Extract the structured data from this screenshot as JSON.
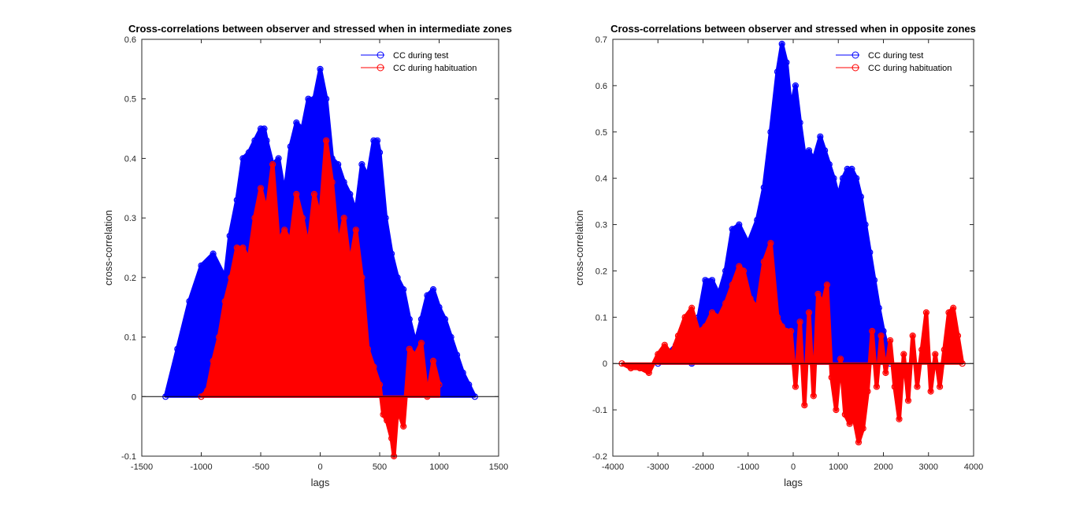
{
  "chart_data": [
    {
      "type": "line",
      "title": "Cross-correlations between observer and stressed when in intermediate zones",
      "xlabel": "lags",
      "ylabel": "cross-correlation",
      "xlim": [
        -1500,
        1500
      ],
      "ylim": [
        -0.1,
        0.6
      ],
      "xticks": [
        "-1500",
        "-1000",
        "-500",
        "0",
        "500",
        "1000",
        "1500"
      ],
      "yticks": [
        "-0.1",
        "0",
        "0.1",
        "0.2",
        "0.3",
        "0.4",
        "0.5",
        "0.6"
      ],
      "legend_position": "top-right",
      "series": [
        {
          "name": "CC during test",
          "color": "#0000ff",
          "x": [
            -1300,
            -1200,
            -1100,
            -1000,
            -900,
            -800,
            -760,
            -700,
            -650,
            -600,
            -550,
            -500,
            -470,
            -450,
            -400,
            -350,
            -300,
            -250,
            -200,
            -150,
            -100,
            -50,
            0,
            50,
            100,
            150,
            200,
            250,
            300,
            350,
            400,
            450,
            480,
            500,
            550,
            600,
            650,
            700,
            750,
            800,
            850,
            900,
            950,
            1000,
            1050,
            1100,
            1150,
            1200,
            1250,
            1300
          ],
          "y": [
            0,
            0.08,
            0.16,
            0.22,
            0.24,
            0.2,
            0.27,
            0.33,
            0.4,
            0.41,
            0.43,
            0.45,
            0.45,
            0.43,
            0.39,
            0.4,
            0.34,
            0.42,
            0.46,
            0.45,
            0.5,
            0.5,
            0.55,
            0.5,
            0.4,
            0.39,
            0.36,
            0.34,
            0.31,
            0.39,
            0.37,
            0.43,
            0.43,
            0.41,
            0.3,
            0.24,
            0.2,
            0.18,
            0.13,
            0.09,
            0.13,
            0.17,
            0.18,
            0.15,
            0.13,
            0.1,
            0.07,
            0.04,
            0.02,
            0
          ]
        },
        {
          "name": "CC during habituation",
          "color": "#ff0000",
          "x": [
            -1000,
            -950,
            -900,
            -850,
            -800,
            -750,
            -700,
            -650,
            -600,
            -550,
            -500,
            -450,
            -400,
            -350,
            -300,
            -250,
            -200,
            -150,
            -100,
            -50,
            0,
            50,
            100,
            150,
            200,
            250,
            300,
            350,
            400,
            450,
            500,
            530,
            560,
            600,
            620,
            650,
            700,
            750,
            800,
            850,
            900,
            950,
            1000
          ],
          "y": [
            0,
            0.01,
            0.06,
            0.1,
            0.16,
            0.2,
            0.25,
            0.25,
            0.23,
            0.3,
            0.35,
            0.31,
            0.39,
            0.26,
            0.28,
            0.26,
            0.34,
            0.3,
            0.25,
            0.34,
            0.3,
            0.43,
            0.36,
            0.25,
            0.3,
            0.22,
            0.28,
            0.2,
            0.08,
            0.05,
            0.02,
            -0.03,
            -0.04,
            -0.07,
            -0.1,
            -0.02,
            -0.05,
            0.08,
            0.07,
            0.09,
            0.0,
            0.06,
            0.02
          ]
        }
      ]
    },
    {
      "type": "line",
      "title": "Cross-correlations between observer and stressed when in opposite zones",
      "xlabel": "lags",
      "ylabel": "cross-correlation",
      "xlim": [
        -4000,
        4000
      ],
      "ylim": [
        -0.2,
        0.7
      ],
      "xticks": [
        "-4000",
        "-3000",
        "-2000",
        "-1000",
        "0",
        "1000",
        "2000",
        "3000",
        "4000"
      ],
      "yticks": [
        "-0.2",
        "-0.1",
        "0",
        "0.1",
        "0.2",
        "0.3",
        "0.4",
        "0.5",
        "0.6",
        "0.7"
      ],
      "legend_position": "top-right",
      "series": [
        {
          "name": "CC during test",
          "color": "#0000ff",
          "x": [
            -3000,
            -2800,
            -2600,
            -2400,
            -2250,
            -2100,
            -1950,
            -1800,
            -1650,
            -1500,
            -1350,
            -1200,
            -1000,
            -800,
            -650,
            -500,
            -350,
            -250,
            -150,
            -50,
            50,
            150,
            250,
            350,
            450,
            600,
            700,
            800,
            900,
            1000,
            1100,
            1200,
            1300,
            1400,
            1500,
            1600,
            1700,
            1800,
            1900,
            2000,
            2100,
            2150
          ],
          "y": [
            0,
            0.02,
            0.04,
            0.07,
            0.0,
            0.1,
            0.18,
            0.18,
            0.15,
            0.2,
            0.29,
            0.3,
            0.26,
            0.31,
            0.38,
            0.5,
            0.63,
            0.69,
            0.65,
            0.55,
            0.6,
            0.52,
            0.45,
            0.46,
            0.44,
            0.49,
            0.46,
            0.43,
            0.4,
            0.36,
            0.4,
            0.42,
            0.42,
            0.4,
            0.36,
            0.3,
            0.24,
            0.18,
            0.12,
            0.07,
            0.03,
            0
          ]
        },
        {
          "name": "CC during habituation",
          "color": "#ff0000",
          "x": [
            -3800,
            -3600,
            -3400,
            -3200,
            -3000,
            -2850,
            -2700,
            -2550,
            -2400,
            -2250,
            -2100,
            -1950,
            -1800,
            -1650,
            -1500,
            -1350,
            -1200,
            -1100,
            -950,
            -800,
            -650,
            -500,
            -350,
            -250,
            -150,
            -50,
            50,
            150,
            250,
            350,
            450,
            550,
            650,
            750,
            850,
            950,
            1050,
            1150,
            1250,
            1350,
            1450,
            1550,
            1650,
            1750,
            1850,
            1950,
            2050,
            2150,
            2250,
            2350,
            2450,
            2550,
            2650,
            2750,
            2850,
            2950,
            3050,
            3150,
            3250,
            3350,
            3450,
            3550,
            3650,
            3750
          ],
          "y": [
            0,
            -0.01,
            -0.01,
            -0.02,
            0.02,
            0.04,
            0.02,
            0.06,
            0.1,
            0.12,
            0.07,
            0.08,
            0.11,
            0.1,
            0.13,
            0.17,
            0.21,
            0.2,
            0.14,
            0.12,
            0.22,
            0.26,
            0.1,
            0.08,
            0.07,
            0.07,
            -0.05,
            0.09,
            -0.09,
            0.11,
            -0.07,
            0.15,
            0.13,
            0.17,
            -0.03,
            -0.1,
            0.01,
            -0.11,
            -0.13,
            -0.12,
            -0.17,
            -0.14,
            -0.06,
            0.07,
            -0.05,
            0.06,
            -0.02,
            0.05,
            -0.05,
            -0.12,
            0.02,
            -0.08,
            0.06,
            -0.05,
            0.03,
            0.11,
            -0.06,
            0.02,
            -0.05,
            0.03,
            0.11,
            0.12,
            0.06,
            0
          ]
        }
      ]
    }
  ]
}
